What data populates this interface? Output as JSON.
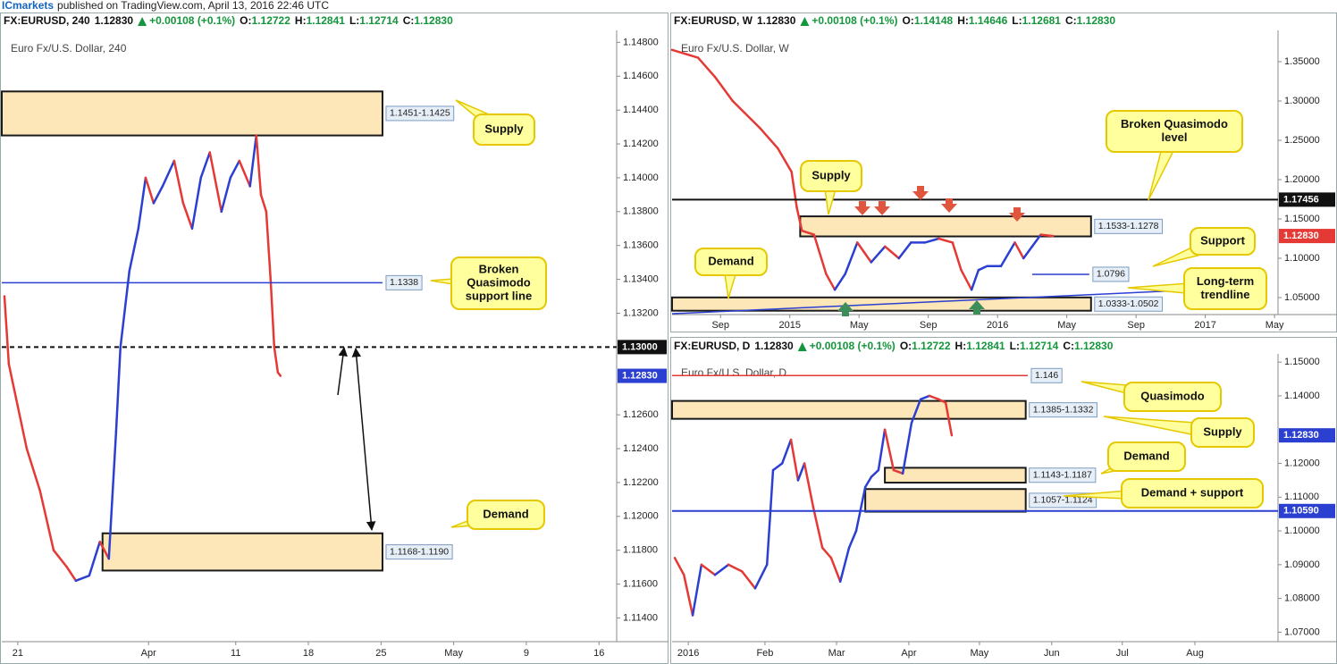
{
  "header": {
    "brand": "ICmarkets",
    "text": "published on TradingView.com, April 13, 2016 22:46 UTC"
  },
  "chart_data": [
    {
      "type": "line",
      "info": {
        "symbol": "FX:EURUSD, 240",
        "last": "1.12830",
        "change": "+0.00108 (+0.1%)",
        "ohlc": [
          [
            "O:",
            "1.12722"
          ],
          [
            "H:",
            "1.12841"
          ],
          [
            "L:",
            "1.12714"
          ],
          [
            "C:",
            "1.12830"
          ]
        ]
      },
      "subtitle": "Euro Fx/U.S. Dollar, 240",
      "x": [
        -5.5,
        -3.7,
        0,
        3.7,
        9.2,
        14.8,
        20.3,
        24,
        29.5,
        33.9,
        37.6,
        40.6,
        42.4,
        46.1,
        49.8,
        52.8,
        56.1,
        59.8,
        64.6,
        68.3,
        72,
        75.6,
        79.3,
        84.1,
        87.8,
        91.5,
        95.9,
        98.5,
        100.4,
        102.6,
        104.4,
        105.9,
        107.4,
        108.5
      ],
      "values": [
        1.133,
        1.129,
        1.1265,
        1.124,
        1.1215,
        1.118,
        1.117,
        1.1162,
        1.1165,
        1.1185,
        1.1175,
        1.125,
        1.13,
        1.1345,
        1.137,
        1.14,
        1.1385,
        1.1395,
        1.141,
        1.1385,
        1.137,
        1.14,
        1.1415,
        1.138,
        1.14,
        1.141,
        1.1395,
        1.1425,
        1.139,
        1.138,
        1.134,
        1.13,
        1.1285,
        1.1283
      ],
      "xlim": [
        -6.6,
        247.3
      ],
      "ylim": [
        1.1126,
        1.1486
      ],
      "xticks": [
        {
          "value": 0,
          "label": "21"
        },
        {
          "value": 54,
          "label": "Apr"
        },
        {
          "value": 90,
          "label": "11"
        },
        {
          "value": 120,
          "label": "18"
        },
        {
          "value": 150,
          "label": "25"
        },
        {
          "value": 180,
          "label": "May"
        },
        {
          "value": 210,
          "label": "9"
        },
        {
          "value": 240,
          "label": "16"
        }
      ],
      "yticks": [
        {
          "value": 1.148,
          "label": "1.14800"
        },
        {
          "value": 1.146,
          "label": "1.14600"
        },
        {
          "value": 1.144,
          "label": "1.14400"
        },
        {
          "value": 1.142,
          "label": "1.14200"
        },
        {
          "value": 1.14,
          "label": "1.14000"
        },
        {
          "value": 1.138,
          "label": "1.13800"
        },
        {
          "value": 1.136,
          "label": "1.13600"
        },
        {
          "value": 1.134,
          "label": "1.13400"
        },
        {
          "value": 1.132,
          "label": "1.13200"
        },
        {
          "value": 1.126,
          "label": "1.12600"
        },
        {
          "value": 1.124,
          "label": "1.12400"
        },
        {
          "value": 1.122,
          "label": "1.12200"
        },
        {
          "value": 1.12,
          "label": "1.12000"
        },
        {
          "value": 1.118,
          "label": "1.11800"
        },
        {
          "value": 1.116,
          "label": "1.11600"
        },
        {
          "value": 1.114,
          "label": "1.11400"
        }
      ],
      "price_tags": [
        {
          "value": 1.13,
          "label": "1.13000",
          "color": "#111111"
        },
        {
          "value": 1.1283,
          "label": "1.12830",
          "color": "#2b3fd1"
        }
      ],
      "zones": [
        {
          "from": 1.1425,
          "to": 1.1451,
          "x0": -6.6,
          "x1": 150.6,
          "label": "1.1451-1.1425"
        },
        {
          "from": 1.1168,
          "to": 1.119,
          "x0": 35,
          "x1": 150.6,
          "label": "1.1168-1.1190"
        }
      ],
      "levels": [
        {
          "value": 1.1338,
          "x0": -6.6,
          "x1": 150.6,
          "color": "#2b3fd1"
        }
      ],
      "lines": [
        {
          "value": 1.13,
          "x0": -6.6,
          "x1": 247.3,
          "color": "#111111",
          "dashed": true
        }
      ],
      "callouts": [
        [
          "Supply"
        ],
        [
          "Broken",
          "Quasimodo",
          "support line"
        ],
        [
          "Demand"
        ]
      ]
    },
    {
      "type": "line",
      "info": {
        "symbol": "FX:EURUSD, W",
        "last": "1.12830",
        "change": "+0.00108 (+0.1%)",
        "ohlc": [
          [
            "O:",
            "1.14148"
          ],
          [
            "H:",
            "1.14646"
          ],
          [
            "L:",
            "1.12681"
          ],
          [
            "C:",
            "1.12830"
          ]
        ]
      },
      "subtitle": "Euro Fx/U.S. Dollar, W",
      "x": [
        5.2,
        6.7,
        7.7,
        8.7,
        10.3,
        11.3,
        12.1,
        12.4,
        12.7,
        13.4,
        14.1,
        14.6,
        15.2,
        15.9,
        16.7,
        17.5,
        18.3,
        19.0,
        19.8,
        20.6,
        21.4,
        21.9,
        22.5,
        22.9,
        23.4,
        24.2,
        25.0,
        25.5,
        26.0,
        26.5,
        27.2
      ],
      "values": [
        1.365,
        1.355,
        1.33,
        1.3,
        1.265,
        1.24,
        1.21,
        1.165,
        1.135,
        1.13,
        1.08,
        1.06,
        1.08,
        1.12,
        1.095,
        1.115,
        1.1,
        1.12,
        1.12,
        1.125,
        1.12,
        1.085,
        1.06,
        1.085,
        1.09,
        1.09,
        1.12,
        1.1,
        1.115,
        1.13,
        1.1283
      ],
      "xlim": [
        5.2,
        40.2
      ],
      "ylim": [
        1.0284,
        1.3875
      ],
      "xticks": [
        {
          "value": 8,
          "label": "Sep"
        },
        {
          "value": 12,
          "label": "2015"
        },
        {
          "value": 16,
          "label": "May"
        },
        {
          "value": 20,
          "label": "Sep"
        },
        {
          "value": 24,
          "label": "2016"
        },
        {
          "value": 28,
          "label": "May"
        },
        {
          "value": 32,
          "label": "Sep"
        },
        {
          "value": 36,
          "label": "2017"
        },
        {
          "value": 40,
          "label": "May"
        }
      ],
      "yticks": [
        {
          "value": 1.35,
          "label": "1.35000"
        },
        {
          "value": 1.3,
          "label": "1.30000"
        },
        {
          "value": 1.25,
          "label": "1.25000"
        },
        {
          "value": 1.2,
          "label": "1.20000"
        },
        {
          "value": 1.15,
          "label": "1.15000"
        },
        {
          "value": 1.1,
          "label": "1.10000"
        },
        {
          "value": 1.05,
          "label": "1.05000"
        }
      ],
      "price_tags": [
        {
          "value": 1.17456,
          "color": "#111111"
        },
        {
          "value": 1.1283,
          "label": "1.12830",
          "color": "#e53935"
        }
      ],
      "zones": [
        {
          "from": 1.1278,
          "to": 1.1533,
          "x0": 12.6,
          "x1": 29.4,
          "label": "1.1533-1.1278"
        },
        {
          "from": 1.0333,
          "to": 1.0502,
          "x0": 5.2,
          "x1": 29.4,
          "label": "1.0333-1.0502"
        }
      ],
      "levels": [
        {
          "value": 1.0796,
          "x0": 26.0,
          "x1": 29.3,
          "color": "#2b3fd1"
        }
      ],
      "lines": [
        {
          "value": 1.17456,
          "x0": 5.2,
          "x1": 40.2,
          "color": "#111111",
          "dashed": false
        }
      ],
      "trendline": {
        "x": [
          5.2,
          38.1
        ],
        "y": [
          1.0295,
          1.0625
        ],
        "color": "#2b3fd1"
      },
      "callouts": [
        [
          "Supply"
        ],
        [
          "Demand"
        ],
        [
          "Broken Quasimodo",
          "level"
        ],
        [
          "Support"
        ],
        [
          "Long-term",
          "trendline"
        ]
      ]
    },
    {
      "type": "line",
      "info": {
        "symbol": "FX:EURUSD, D",
        "last": "1.12830",
        "change": "+0.00108 (+0.1%)",
        "ohlc": [
          [
            "O:",
            "1.12722"
          ],
          [
            "H:",
            "1.12841"
          ],
          [
            "L:",
            "1.12714"
          ],
          [
            "C:",
            "1.12830"
          ]
        ]
      },
      "subtitle": "Euro Fx/U.S. Dollar, D",
      "x": [
        -5.3,
        -2.6,
        0,
        2.6,
        6.6,
        10.6,
        14.6,
        18.5,
        22.0,
        23.8,
        26.5,
        29.1,
        31.2,
        33.1,
        35.7,
        38.4,
        41.0,
        43.7,
        46.3,
        48.4,
        51.1,
        52.9,
        55.0,
        56.9,
        59.5,
        62.2,
        64.8,
        67.5,
        70.1,
        72.8,
        74.9,
        76.7
      ],
      "values": [
        1.092,
        1.087,
        1.075,
        1.09,
        1.087,
        1.09,
        1.088,
        1.083,
        1.09,
        1.118,
        1.12,
        1.127,
        1.115,
        1.12,
        1.107,
        1.095,
        1.092,
        1.085,
        1.095,
        1.1,
        1.113,
        1.116,
        1.118,
        1.13,
        1.118,
        1.117,
        1.132,
        1.139,
        1.14,
        1.139,
        1.138,
        1.1283
      ],
      "xlim": [
        -6.1,
        173.3
      ],
      "ylim": [
        1.0672,
        1.1519
      ],
      "xticks": [
        {
          "value": -1.3,
          "label": "2016"
        },
        {
          "value": 21.4,
          "label": "Feb"
        },
        {
          "value": 42.6,
          "label": "Mar"
        },
        {
          "value": 64.0,
          "label": "Apr"
        },
        {
          "value": 84.9,
          "label": "May"
        },
        {
          "value": 106.3,
          "label": "Jun"
        },
        {
          "value": 127.2,
          "label": "Jul"
        },
        {
          "value": 148.7,
          "label": "Aug"
        }
      ],
      "yticks": [
        {
          "value": 1.15,
          "label": "1.15000"
        },
        {
          "value": 1.14,
          "label": "1.14000"
        },
        {
          "value": 1.12,
          "label": "1.12000"
        },
        {
          "value": 1.11,
          "label": "1.11000"
        },
        {
          "value": 1.1,
          "label": "1.10000"
        },
        {
          "value": 1.09,
          "label": "1.09000"
        },
        {
          "value": 1.08,
          "label": "1.08000"
        },
        {
          "value": 1.07,
          "label": "1.07000"
        }
      ],
      "price_tags": [
        {
          "value": 1.1283,
          "label": "1.12830",
          "color": "#2b3fd1"
        },
        {
          "value": 1.1059,
          "label": "1.10590",
          "color": "#2b3fd1"
        }
      ],
      "zones": [
        {
          "from": 1.1332,
          "to": 1.1385,
          "x0": -6.1,
          "x1": 98.6,
          "label": "1.1385-1.1332"
        },
        {
          "from": 1.1143,
          "to": 1.1187,
          "x0": 56.9,
          "x1": 98.6,
          "label": "1.1143-1.1187"
        },
        {
          "from": 1.1057,
          "to": 1.1124,
          "x0": 51.1,
          "x1": 98.6,
          "label": "1.1057-1.1124"
        }
      ],
      "levels": [
        {
          "value": 1.146,
          "x0": -6.1,
          "x1": 99.2,
          "color": "#e53935"
        }
      ],
      "lines": [
        {
          "value": 1.1059,
          "x0": -6.1,
          "x1": 173.3,
          "color": "#2b3fd1",
          "dashed": false
        }
      ],
      "callouts": [
        [
          "Quasimodo"
        ],
        [
          "Supply"
        ],
        [
          "Demand"
        ],
        [
          "Demand + support"
        ]
      ]
    }
  ]
}
